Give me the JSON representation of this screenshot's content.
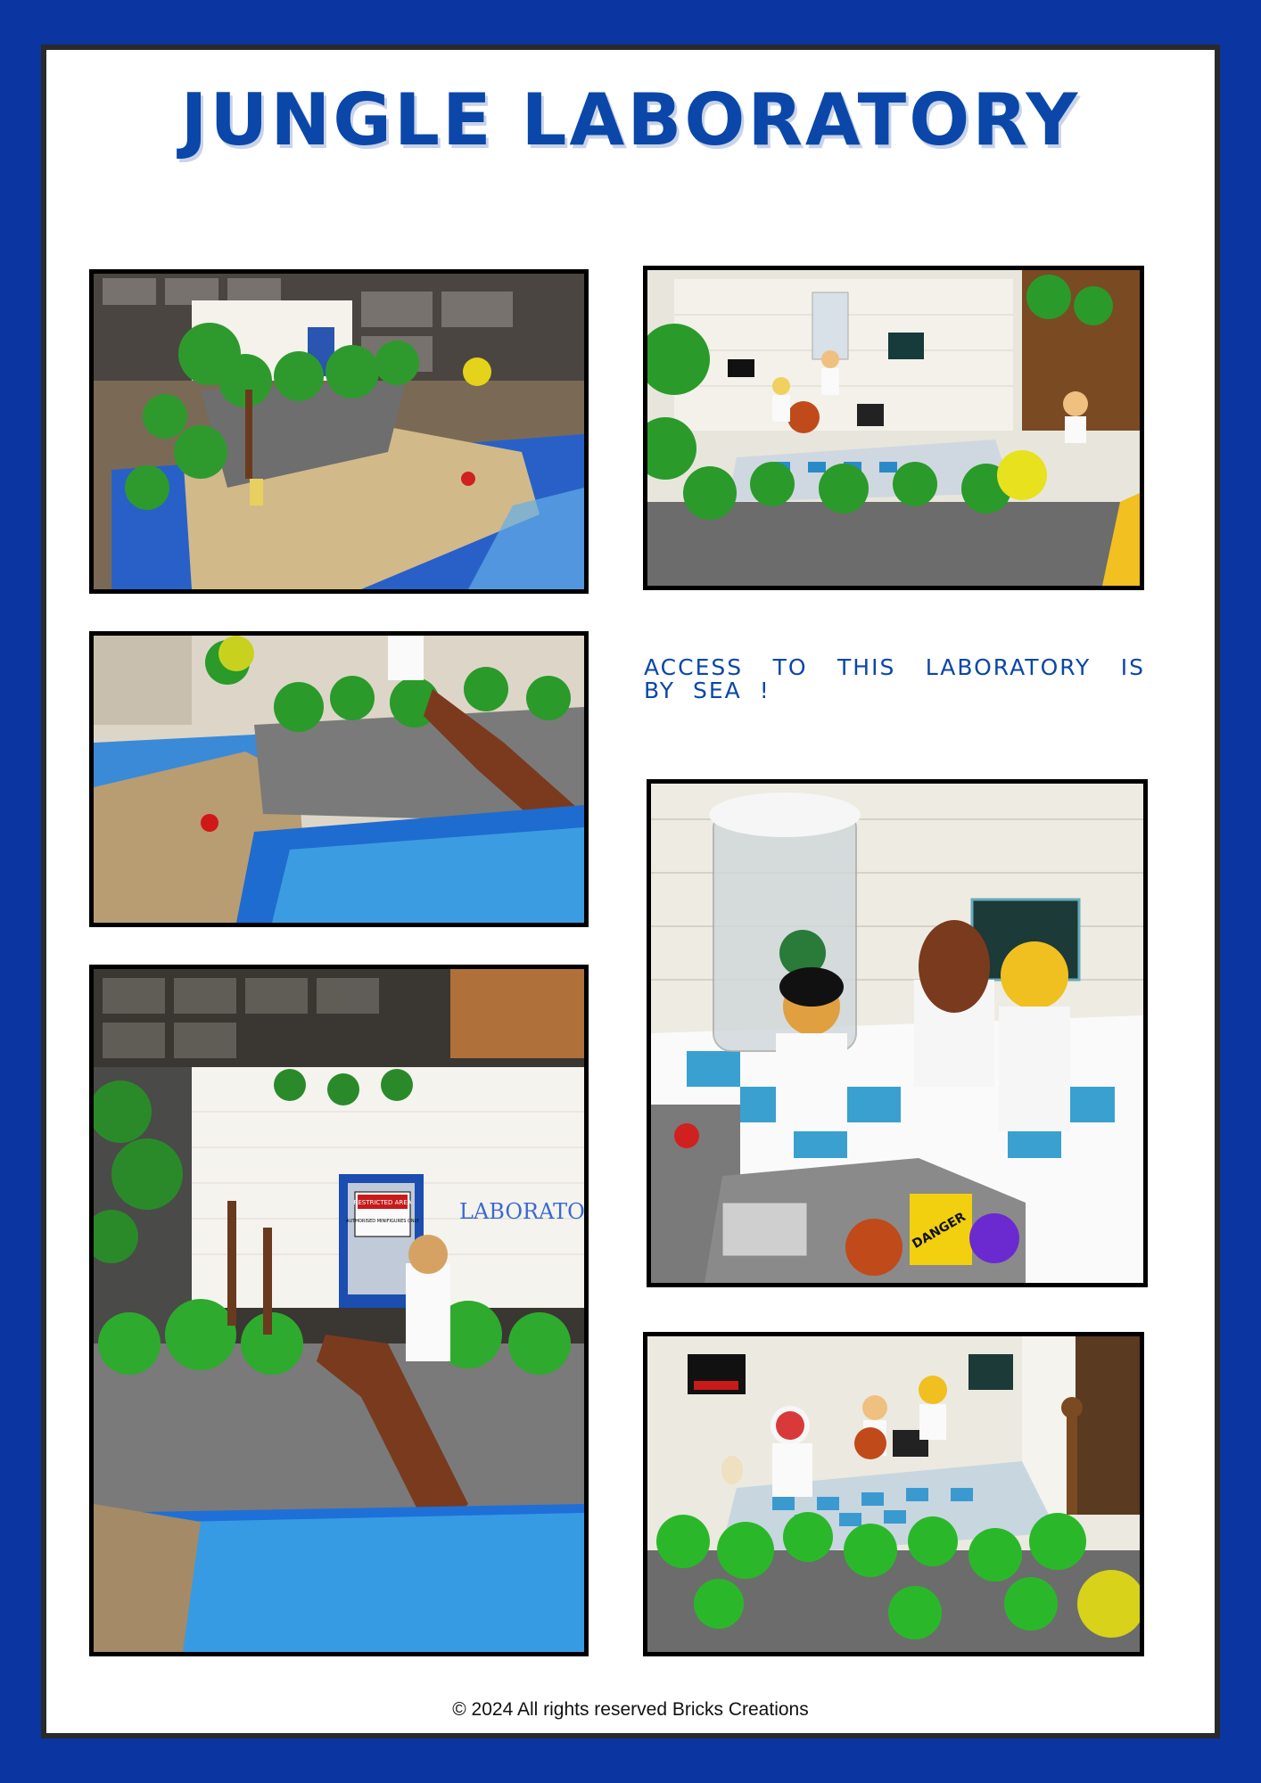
{
  "page": {
    "title": "JUNGLE LABORATORY",
    "caption": "ACCESS TO THIS LABORATORY IS BY SEA !",
    "footer": "© 2024 All rights reserved Bricks Creations"
  },
  "photos": [
    {
      "id": "photo-overview",
      "description_name": "lab-overview-photo"
    },
    {
      "id": "photo-lab-front",
      "description_name": "lab-front-photo"
    },
    {
      "id": "photo-beach-cliff",
      "description_name": "beach-cliff-photo"
    },
    {
      "id": "photo-lab-entrance",
      "description_name": "lab-entrance-photo"
    },
    {
      "id": "photo-lab-interior",
      "description_name": "lab-interior-photo"
    },
    {
      "id": "photo-lab-closeup",
      "description_name": "lab-closeup-photo"
    }
  ],
  "sign_text": {
    "restricted": "RESTRICTED AREA",
    "authorised": "AUTHORISED MINIFIGURES ONLY",
    "laboratory": "LABORATO",
    "danger": "DANGER"
  },
  "colors": {
    "frame_blue": "#0b35a0",
    "title_blue": "#0a47a8",
    "border_dark": "#2a2a2a"
  }
}
